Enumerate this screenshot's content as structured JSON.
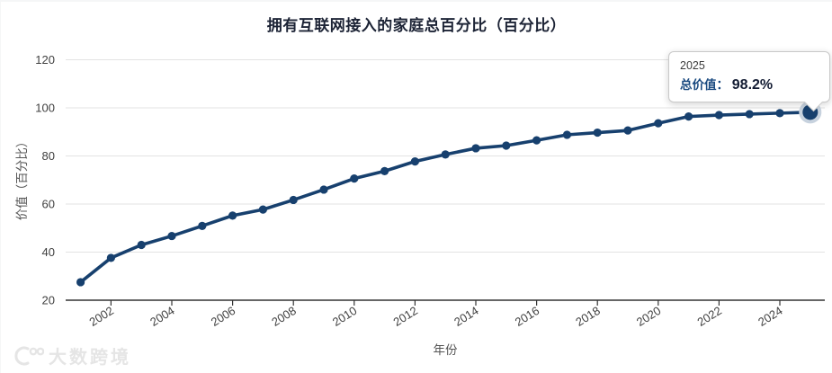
{
  "header": {
    "title": "拥有互联网接入的家庭总百分比（百分比）"
  },
  "tooltip": {
    "year": "2025",
    "series_label": "总价值：",
    "value": "98.2%"
  },
  "watermark": {
    "logo": "rings-logo-icon",
    "text": "大数跨境"
  },
  "colors": {
    "line": "#17406e",
    "point_halo": "#c7d2de",
    "title_text": "#1c2335",
    "tick_text": "#404040",
    "axis_label_text": "#555555",
    "grid": "#e3e3e3",
    "axis": "#333333",
    "tooltip_year_text": "#3a3a3a",
    "tooltip_label_text": "#1a4a80",
    "tooltip_value_text": "#131c33",
    "watermark_text": "#e5e5e5"
  },
  "chart_data": {
    "type": "line",
    "title": "拥有互联网接入的家庭总百分比（百分比）",
    "xlabel": "年份",
    "ylabel": "价值（百分比）",
    "series_name": "总价值",
    "x": [
      2001,
      2002,
      2003,
      2004,
      2005,
      2006,
      2007,
      2008,
      2009,
      2010,
      2011,
      2012,
      2013,
      2014,
      2015,
      2016,
      2017,
      2018,
      2019,
      2020,
      2021,
      2022,
      2023,
      2024,
      2025
    ],
    "values": [
      27.5,
      37.6,
      43.0,
      46.7,
      50.9,
      55.2,
      57.7,
      61.7,
      66.0,
      70.6,
      73.7,
      77.7,
      80.6,
      83.2,
      84.3,
      86.5,
      88.8,
      89.7,
      90.6,
      93.6,
      96.4,
      97.0,
      97.4,
      97.8,
      98.2
    ],
    "highlighted_point": {
      "x": 2025,
      "value": 98.2
    },
    "ylim": [
      20,
      130
    ],
    "yticks": [
      20,
      40,
      60,
      80,
      100,
      120
    ],
    "xticks": [
      2002,
      2004,
      2006,
      2008,
      2010,
      2012,
      2014,
      2016,
      2018,
      2020,
      2022,
      2024
    ],
    "grid": true,
    "legend": false
  }
}
